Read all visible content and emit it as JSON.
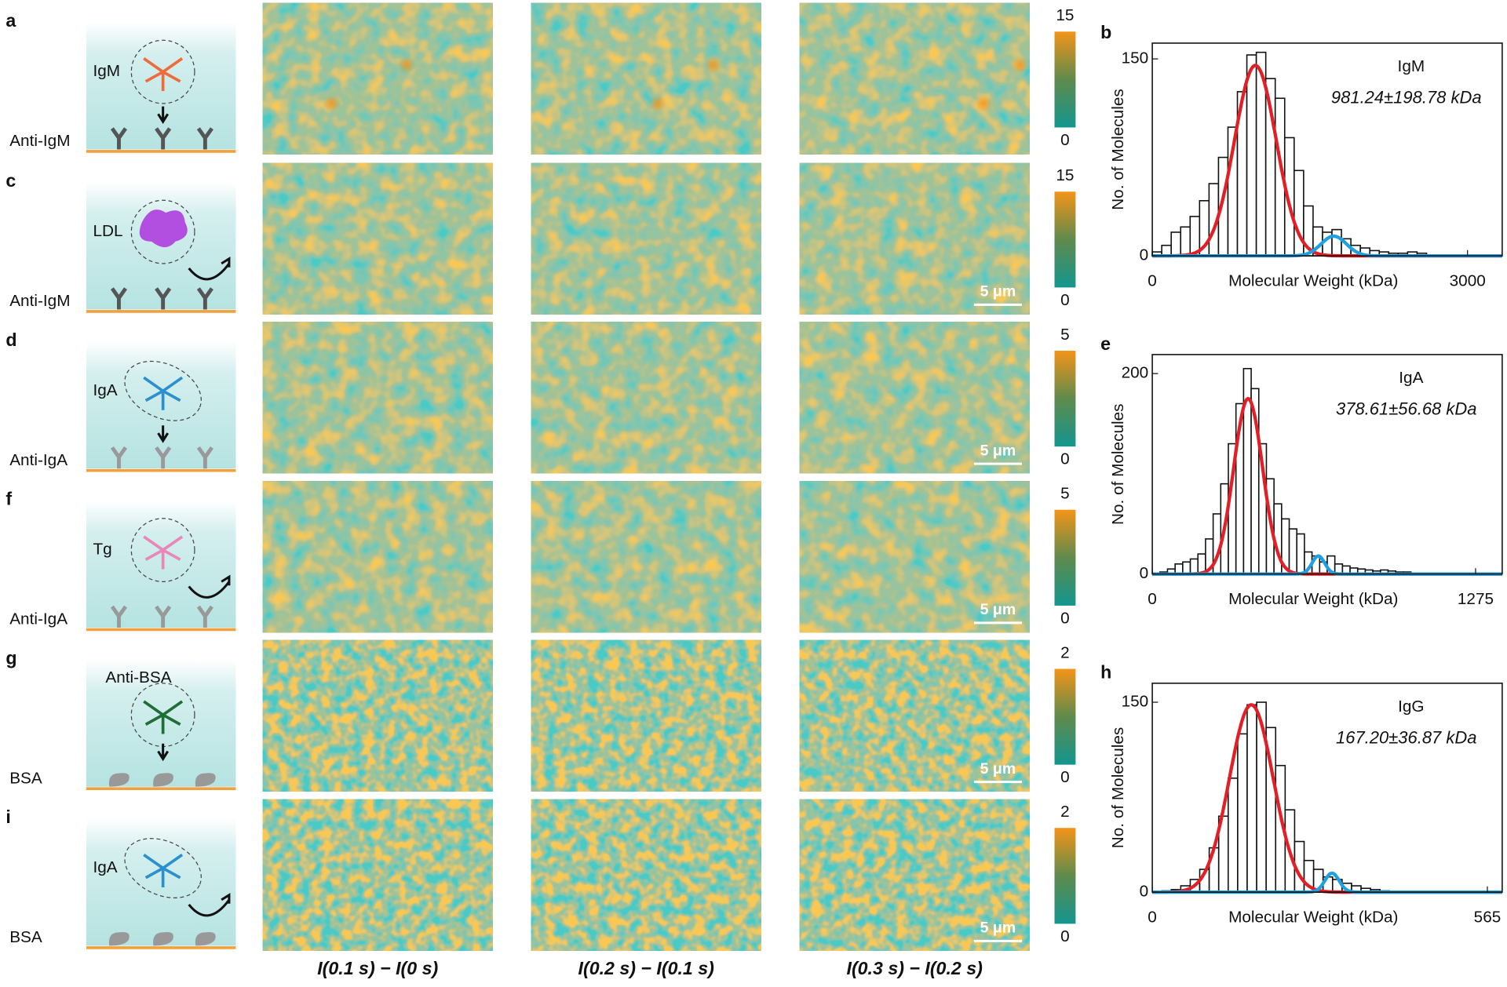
{
  "panels": [
    {
      "letter": "a",
      "molecule": "IgM",
      "surface": "Anti-IgM",
      "colorbar": {
        "max": 15,
        "min": 0
      }
    },
    {
      "letter": "c",
      "molecule": "LDL",
      "surface": "Anti-IgM",
      "colorbar": {
        "max": 15,
        "min": 0
      }
    },
    {
      "letter": "d",
      "molecule": "IgA",
      "surface": "Anti-IgA",
      "colorbar": {
        "max": 5,
        "min": 0
      }
    },
    {
      "letter": "f",
      "molecule": "Tg",
      "surface": "Anti-IgA",
      "colorbar": {
        "max": 5,
        "min": 0
      }
    },
    {
      "letter": "g",
      "molecule": "Anti-BSA",
      "surface": "BSA",
      "colorbar": {
        "max": 2,
        "min": 0
      }
    },
    {
      "letter": "i",
      "molecule": "IgA",
      "surface": "BSA",
      "colorbar": {
        "max": 2,
        "min": 0
      }
    }
  ],
  "columns": [
    "I(0.1 s) − I(0 s)",
    "I(0.2 s) − I(0.1 s)",
    "I(0.3 s) − I(0.2 s)"
  ],
  "scale_bar": "5 μm",
  "chart_data": [
    {
      "type": "histogram",
      "label": "b",
      "annotation_title": "IgM",
      "annotation": "981.24±198.78 kDa",
      "xlabel": "Molecular Weight (kDa)",
      "ylabel": "No. of Molecules",
      "bins": [
        0,
        90,
        180,
        270,
        360,
        450,
        540,
        630,
        720,
        810,
        900,
        990,
        1080,
        1170,
        1260,
        1350,
        1440,
        1530,
        1620,
        1710,
        1800,
        1890,
        1980,
        2070,
        2160,
        2250,
        2340,
        2430,
        2520,
        2610,
        2700
      ],
      "values": [
        3,
        8,
        18,
        22,
        30,
        42,
        55,
        75,
        98,
        125,
        153,
        155,
        135,
        120,
        90,
        65,
        38,
        22,
        18,
        20,
        13,
        8,
        6,
        4,
        3,
        2,
        2,
        3,
        2,
        0
      ],
      "xlim": [
        0,
        3330
      ],
      "ylim": [
        0,
        162
      ],
      "xticks": [
        0,
        3000
      ],
      "yticks": [
        0,
        150
      ],
      "fits": [
        {
          "color": "#e21f26",
          "center": 981,
          "width": 199,
          "height": 145
        },
        {
          "color": "#1fa0e0",
          "center": 1727,
          "width": 120,
          "height": 15
        }
      ]
    },
    {
      "type": "histogram",
      "label": "e",
      "annotation_title": "IgA",
      "annotation": "378.61±56.68 kDa",
      "xlabel": "Molecular Weight (kDa)",
      "ylabel": "No. of Molecules",
      "bins": [
        0,
        30,
        60,
        90,
        120,
        150,
        180,
        210,
        240,
        270,
        300,
        330,
        360,
        390,
        420,
        450,
        480,
        510,
        540,
        570,
        600,
        630,
        660,
        690,
        720,
        750,
        780,
        810,
        840,
        870,
        900,
        930,
        960,
        990,
        1020,
        1050,
        1080
      ],
      "values": [
        0,
        2,
        5,
        10,
        12,
        15,
        20,
        35,
        60,
        90,
        130,
        170,
        205,
        185,
        130,
        95,
        70,
        55,
        45,
        40,
        22,
        18,
        12,
        18,
        10,
        8,
        6,
        5,
        4,
        3,
        4,
        3,
        2,
        2,
        1,
        1
      ],
      "xlim": [
        0,
        1380
      ],
      "ylim": [
        0,
        219
      ],
      "xticks": [
        0,
        1275
      ],
      "yticks": [
        0,
        200
      ],
      "fits": [
        {
          "color": "#e21f26",
          "center": 378,
          "width": 57,
          "height": 175
        },
        {
          "color": "#1fa0e0",
          "center": 655,
          "width": 25,
          "height": 18
        }
      ]
    },
    {
      "type": "histogram",
      "label": "h",
      "annotation_title": "IgG",
      "annotation": "167.20±36.87 kDa",
      "xlabel": "Molecular Weight (kDa)",
      "ylabel": "No. of Molecules",
      "bins": [
        0,
        16,
        32,
        48,
        64,
        80,
        96,
        112,
        128,
        144,
        160,
        176,
        192,
        208,
        224,
        240,
        256,
        272,
        288,
        304,
        320,
        336,
        352,
        368,
        384,
        400
      ],
      "values": [
        0,
        1,
        2,
        5,
        10,
        18,
        35,
        60,
        90,
        125,
        148,
        150,
        130,
        100,
        65,
        40,
        25,
        18,
        12,
        10,
        7,
        5,
        3,
        2,
        1
      ],
      "xlim": [
        0,
        590
      ],
      "ylim": [
        0,
        165
      ],
      "xticks": [
        0,
        565
      ],
      "yticks": [
        0,
        150
      ],
      "fits": [
        {
          "color": "#e21f26",
          "center": 167,
          "width": 37,
          "height": 148
        },
        {
          "color": "#1fa0e0",
          "center": 303,
          "width": 12,
          "height": 15
        }
      ]
    }
  ]
}
